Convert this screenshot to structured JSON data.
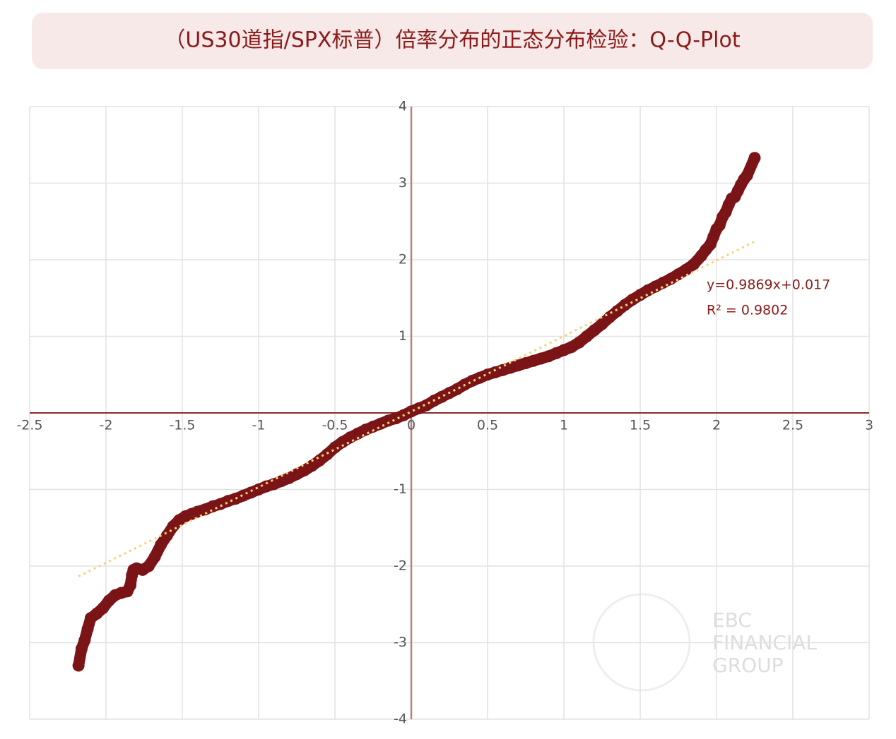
{
  "chart_data": {
    "type": "scatter",
    "title": "（US30道指/SPX标普）倍率分布的正态分布检验：Q-Q-Plot",
    "xlim": [
      -2.5,
      3
    ],
    "ylim": [
      -4,
      4
    ],
    "xticks": [
      -2.5,
      -2,
      -1.5,
      -1,
      -0.5,
      0,
      0.5,
      1,
      1.5,
      2,
      2.5,
      3
    ],
    "yticks": [
      -4,
      -3,
      -2,
      -1,
      1,
      2,
      3,
      4
    ],
    "grid": true,
    "series": [
      {
        "color": "#7b1416",
        "x": [
          -2.18,
          -2.16,
          -2.14,
          -2.12,
          -2.1,
          -2.06,
          -2.02,
          -1.98,
          -1.94,
          -1.9,
          -1.86,
          -1.84,
          -1.83,
          -1.82,
          -1.8,
          -1.76,
          -1.72,
          -1.68,
          -1.64,
          -1.6,
          -1.56,
          -1.52,
          -1.48,
          -1.44,
          -1.4,
          -1.35,
          -1.3,
          -1.25,
          -1.2,
          -1.15,
          -1.1,
          -1.05,
          -1.0,
          -0.95,
          -0.9,
          -0.85,
          -0.8,
          -0.75,
          -0.7,
          -0.65,
          -0.6,
          -0.55,
          -0.5,
          -0.45,
          -0.4,
          -0.35,
          -0.3,
          -0.25,
          -0.2,
          -0.15,
          -0.1,
          -0.05,
          0,
          0.05,
          0.1,
          0.15,
          0.2,
          0.25,
          0.3,
          0.35,
          0.4,
          0.45,
          0.5,
          0.55,
          0.6,
          0.65,
          0.7,
          0.75,
          0.8,
          0.85,
          0.9,
          0.95,
          1.0,
          1.05,
          1.1,
          1.15,
          1.2,
          1.25,
          1.3,
          1.35,
          1.4,
          1.45,
          1.5,
          1.55,
          1.6,
          1.65,
          1.7,
          1.75,
          1.8,
          1.85,
          1.9,
          1.93,
          1.96,
          1.98,
          2.0,
          2.02,
          2.04,
          2.06,
          2.08,
          2.1,
          2.12,
          2.14,
          2.16,
          2.18,
          2.2,
          2.25
        ],
        "y": [
          -3.3,
          -3.08,
          -2.97,
          -2.82,
          -2.68,
          -2.62,
          -2.55,
          -2.45,
          -2.38,
          -2.35,
          -2.33,
          -2.25,
          -2.12,
          -2.05,
          -2.03,
          -2.05,
          -2.0,
          -1.88,
          -1.72,
          -1.6,
          -1.48,
          -1.4,
          -1.35,
          -1.32,
          -1.29,
          -1.26,
          -1.22,
          -1.19,
          -1.15,
          -1.12,
          -1.08,
          -1.04,
          -1.0,
          -0.96,
          -0.93,
          -0.89,
          -0.85,
          -0.8,
          -0.75,
          -0.69,
          -0.62,
          -0.54,
          -0.45,
          -0.38,
          -0.32,
          -0.27,
          -0.22,
          -0.18,
          -0.14,
          -0.1,
          -0.07,
          -0.03,
          0.02,
          0.06,
          0.1,
          0.16,
          0.21,
          0.26,
          0.31,
          0.37,
          0.42,
          0.46,
          0.5,
          0.53,
          0.56,
          0.59,
          0.62,
          0.65,
          0.68,
          0.71,
          0.74,
          0.78,
          0.82,
          0.86,
          0.92,
          1.0,
          1.08,
          1.16,
          1.25,
          1.33,
          1.41,
          1.48,
          1.54,
          1.6,
          1.65,
          1.7,
          1.75,
          1.81,
          1.87,
          1.94,
          2.05,
          2.13,
          2.2,
          2.3,
          2.4,
          2.45,
          2.56,
          2.62,
          2.72,
          2.8,
          2.82,
          2.9,
          2.98,
          3.05,
          3.1,
          3.33
        ]
      }
    ],
    "trendline": {
      "slope": 0.9869,
      "intercept": 0.017,
      "color": "#f5d37a",
      "label": "y=0.9869x+0.017",
      "r2_label": "R² = 0.9802"
    },
    "watermark": [
      "EBC",
      "FINANCIAL",
      "GROUP"
    ]
  }
}
